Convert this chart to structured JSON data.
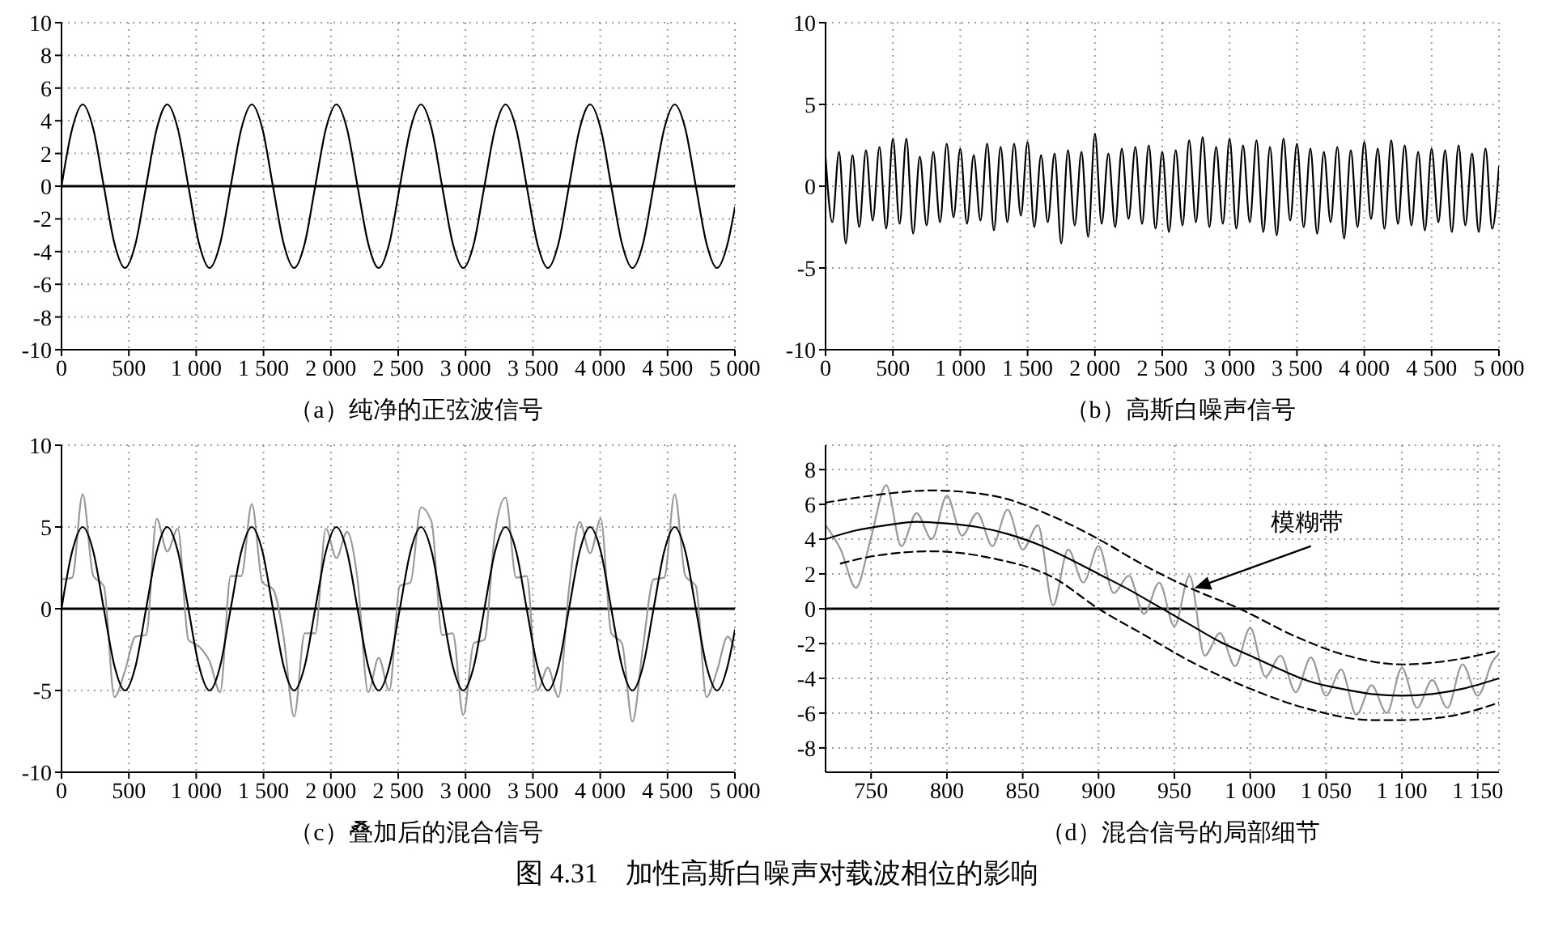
{
  "chart_data": [
    {
      "type": "line",
      "xlabel": "（a）纯净的正弦波信号",
      "xlim": [
        0,
        5000
      ],
      "ylim": [
        -10,
        10
      ],
      "xticks": [
        0,
        500,
        {
          "value": 1000,
          "label": "1 000"
        },
        {
          "value": 1500,
          "label": "1 500"
        },
        {
          "value": 2000,
          "label": "2 000"
        },
        {
          "value": 2500,
          "label": "2 500"
        },
        {
          "value": 3000,
          "label": "3 000"
        },
        {
          "value": 3500,
          "label": "3 500"
        },
        {
          "value": 4000,
          "label": "4 000"
        },
        {
          "value": 4500,
          "label": "4 500"
        },
        {
          "value": 5000,
          "label": "5 000"
        }
      ],
      "yticks": [
        -10,
        -8,
        -6,
        -4,
        -2,
        0,
        2,
        4,
        6,
        8,
        10
      ],
      "grid": true,
      "marker": "none",
      "line_style": "solid",
      "ref_lines": [
        {
          "axis": "y",
          "value": 0,
          "color": "#000000"
        }
      ],
      "series": [
        {
          "color": "#000000",
          "x": [
            0,
            79,
            157,
            236,
            314,
            393,
            471,
            550,
            628,
            707,
            785,
            864,
            942,
            1021,
            1099,
            1178,
            1256,
            1335,
            1413,
            1492,
            1570,
            1649,
            1727,
            1806,
            1884,
            1963,
            2041,
            2120,
            2198,
            2277,
            2355,
            2434,
            2512,
            2591,
            2669,
            2748,
            2826,
            2905,
            2983,
            3062,
            3140,
            3219,
            3297,
            3376,
            3454,
            3533,
            3611,
            3690,
            3768,
            3847,
            3925,
            4004,
            4082,
            4161,
            4239,
            4318,
            4396,
            4475,
            4553,
            4632,
            4710,
            4789,
            4867,
            4946,
            5000
          ],
          "values": [
            0,
            3.5,
            5,
            3.5,
            0,
            -3.5,
            -5,
            -3.5,
            0,
            3.5,
            5,
            3.5,
            0,
            -3.5,
            -5,
            -3.5,
            0,
            3.5,
            5,
            3.5,
            0,
            -3.5,
            -5,
            -3.5,
            0,
            3.5,
            5,
            3.5,
            0,
            -3.5,
            -5,
            -3.5,
            0,
            3.5,
            5,
            3.5,
            0,
            -3.5,
            -5,
            -3.5,
            0,
            3.5,
            5,
            3.5,
            0,
            -3.5,
            -5,
            -3.5,
            0,
            3.5,
            5,
            3.5,
            0,
            -3.5,
            -5,
            -3.5,
            0,
            3.5,
            5,
            3.5,
            0,
            -3.5,
            -5,
            -3.5,
            -1.3
          ]
        }
      ]
    },
    {
      "type": "line",
      "xlabel": "（b）高斯白噪声信号",
      "xlim": [
        0,
        5000
      ],
      "ylim": [
        -10,
        10
      ],
      "xticks": [
        0,
        500,
        {
          "value": 1000,
          "label": "1 000"
        },
        {
          "value": 1500,
          "label": "1 500"
        },
        {
          "value": 2000,
          "label": "2 000"
        },
        {
          "value": 2500,
          "label": "2 500"
        },
        {
          "value": 3000,
          "label": "3 000"
        },
        {
          "value": 3500,
          "label": "3 500"
        },
        {
          "value": 4000,
          "label": "4 000"
        },
        {
          "value": 4500,
          "label": "4 500"
        },
        {
          "value": 5000,
          "label": "5 000"
        }
      ],
      "yticks": [
        -10,
        -5,
        0,
        5,
        10
      ],
      "grid": true,
      "marker": "none",
      "line_style": "solid",
      "series": [
        {
          "color": "#000000",
          "x": [
            0,
            50,
            100,
            150,
            200,
            250,
            300,
            350,
            400,
            450,
            500,
            550,
            600,
            650,
            700,
            750,
            800,
            850,
            900,
            950,
            1000,
            1050,
            1100,
            1150,
            1200,
            1250,
            1300,
            1350,
            1400,
            1450,
            1500,
            1550,
            1600,
            1650,
            1700,
            1750,
            1800,
            1850,
            1900,
            1950,
            2000,
            2050,
            2100,
            2150,
            2200,
            2250,
            2300,
            2350,
            2400,
            2450,
            2500,
            2550,
            2600,
            2650,
            2700,
            2750,
            2800,
            2850,
            2900,
            2950,
            3000,
            3050,
            3100,
            3150,
            3200,
            3250,
            3300,
            3350,
            3400,
            3450,
            3500,
            3550,
            3600,
            3650,
            3700,
            3750,
            3800,
            3850,
            3900,
            3950,
            4000,
            4050,
            4100,
            4150,
            4200,
            4250,
            4300,
            4350,
            4400,
            4450,
            4500,
            4550,
            4600,
            4650,
            4700,
            4750,
            4800,
            4850,
            4900,
            4950,
            5000
          ],
          "values": [
            1.8,
            -2.2,
            2.1,
            -3.5,
            1.9,
            -2.5,
            2.2,
            -2.1,
            2.4,
            -2.6,
            2.9,
            -2.3,
            2.9,
            -2.9,
            1.8,
            -2.4,
            2.1,
            -2.2,
            2.6,
            -1.9,
            2.3,
            -2.3,
            1.9,
            -2.1,
            2.6,
            -2.7,
            2.4,
            -2.2,
            2.6,
            -1.8,
            2.7,
            -2.5,
            1.9,
            -2.2,
            2.0,
            -3.5,
            2.2,
            -2.4,
            2.1,
            -3.1,
            3.2,
            -2.3,
            2.0,
            -2.5,
            2.3,
            -2.0,
            2.4,
            -2.3,
            2.5,
            -2.6,
            2.1,
            -2.8,
            2.2,
            -2.4,
            2.8,
            -2.2,
            3.0,
            -2.5,
            2.4,
            -2.3,
            2.9,
            -2.6,
            2.5,
            -2.2,
            2.8,
            -2.8,
            2.4,
            -3.0,
            2.9,
            -2.1,
            2.6,
            -2.5,
            2.3,
            -2.9,
            2.1,
            -2.2,
            2.4,
            -3.2,
            2.2,
            -2.5,
            2.7,
            -2.0,
            2.3,
            -2.6,
            2.8,
            -2.3,
            2.5,
            -2.4,
            2.1,
            -2.7,
            2.3,
            -2.2,
            2.2,
            -2.8,
            2.5,
            -2.4,
            2.0,
            -2.8,
            2.3,
            -2.6,
            1.2
          ]
        }
      ]
    },
    {
      "type": "line",
      "xlabel": "（c）叠加后的混合信号",
      "xlim": [
        0,
        5000
      ],
      "ylim": [
        -10,
        10
      ],
      "xticks": [
        0,
        500,
        {
          "value": 1000,
          "label": "1 000"
        },
        {
          "value": 1500,
          "label": "1 500"
        },
        {
          "value": 2000,
          "label": "2 000"
        },
        {
          "value": 2500,
          "label": "2 500"
        },
        {
          "value": 3000,
          "label": "3 000"
        },
        {
          "value": 3500,
          "label": "3 500"
        },
        {
          "value": 4000,
          "label": "4 000"
        },
        {
          "value": 4500,
          "label": "4 500"
        },
        {
          "value": 5000,
          "label": "5 000"
        }
      ],
      "yticks": [
        -10,
        -5,
        0,
        5,
        10
      ],
      "grid": true,
      "marker": "none",
      "line_style": "solid",
      "ref_lines": [
        {
          "axis": "y",
          "value": 0,
          "color": "#000000"
        }
      ],
      "series": [
        {
          "color": "#999999",
          "x": [
            0,
            79,
            157,
            236,
            314,
            393,
            471,
            550,
            628,
            707,
            785,
            864,
            942,
            1021,
            1099,
            1178,
            1256,
            1335,
            1413,
            1492,
            1570,
            1649,
            1727,
            1806,
            1884,
            1963,
            2041,
            2120,
            2198,
            2277,
            2355,
            2434,
            2512,
            2591,
            2669,
            2748,
            2826,
            2905,
            2983,
            3062,
            3140,
            3219,
            3297,
            3376,
            3454,
            3533,
            3611,
            3690,
            3768,
            3847,
            3925,
            4004,
            4082,
            4161,
            4239,
            4318,
            4396,
            4475,
            4553,
            4632,
            4710,
            4789,
            4867,
            4946,
            5000
          ],
          "values": [
            1.8,
            1.9,
            7.0,
            2.0,
            1.4,
            -5.4,
            -3.8,
            -1.7,
            -1.6,
            5.5,
            3.5,
            4.9,
            -1.9,
            -2.3,
            -3.2,
            -5.1,
            2.0,
            2.0,
            6.4,
            1.6,
            1.2,
            -1.7,
            -6.6,
            -1.5,
            -1.5,
            4.9,
            3.1,
            4.7,
            1.8,
            -5.1,
            -3.0,
            -5.0,
            1.4,
            1.6,
            6.2,
            5.3,
            -1.6,
            -1.5,
            -6.5,
            -2.1,
            -1.9,
            4.7,
            6.8,
            1.9,
            2.0,
            -5.0,
            -3.6,
            -5.4,
            1.2,
            5.3,
            3.4,
            5.5,
            -1.5,
            -2.1,
            -6.9,
            -2.3,
            1.8,
            1.9,
            7.0,
            2.0,
            1.4,
            -5.4,
            -3.8,
            -1.7,
            -2.5
          ]
        },
        {
          "color": "#000000",
          "x": [
            0,
            79,
            157,
            236,
            314,
            393,
            471,
            550,
            628,
            707,
            785,
            864,
            942,
            1021,
            1099,
            1178,
            1256,
            1335,
            1413,
            1492,
            1570,
            1649,
            1727,
            1806,
            1884,
            1963,
            2041,
            2120,
            2198,
            2277,
            2355,
            2434,
            2512,
            2591,
            2669,
            2748,
            2826,
            2905,
            2983,
            3062,
            3140,
            3219,
            3297,
            3376,
            3454,
            3533,
            3611,
            3690,
            3768,
            3847,
            3925,
            4004,
            4082,
            4161,
            4239,
            4318,
            4396,
            4475,
            4553,
            4632,
            4710,
            4789,
            4867,
            4946,
            5000
          ],
          "values": [
            0,
            3.5,
            5,
            3.5,
            0,
            -3.5,
            -5,
            -3.5,
            0,
            3.5,
            5,
            3.5,
            0,
            -3.5,
            -5,
            -3.5,
            0,
            3.5,
            5,
            3.5,
            0,
            -3.5,
            -5,
            -3.5,
            0,
            3.5,
            5,
            3.5,
            0,
            -3.5,
            -5,
            -3.5,
            0,
            3.5,
            5,
            3.5,
            0,
            -3.5,
            -5,
            -3.5,
            0,
            3.5,
            5,
            3.5,
            0,
            -3.5,
            -5,
            -3.5,
            0,
            3.5,
            5,
            3.5,
            0,
            -3.5,
            -5,
            -3.5,
            0,
            3.5,
            5,
            3.5,
            0,
            -3.5,
            -5,
            -3.5,
            -1.3
          ]
        }
      ]
    },
    {
      "type": "line",
      "xlabel": "（d）混合信号的局部细节",
      "xlim": [
        720,
        1164
      ],
      "ylim": [
        -9.4,
        9.4
      ],
      "xticks": [
        750,
        800,
        850,
        900,
        950,
        {
          "value": 1000,
          "label": "1 000"
        },
        {
          "value": 1050,
          "label": "1 050"
        },
        {
          "value": 1100,
          "label": "1 100"
        },
        {
          "value": 1150,
          "label": "1 150"
        }
      ],
      "yticks": [
        -8,
        -6,
        -4,
        -2,
        0,
        2,
        4,
        6,
        8
      ],
      "grid": true,
      "marker": "none",
      "line_style": "solid",
      "ref_lines": [
        {
          "axis": "y",
          "value": 0,
          "color": "#000000"
        }
      ],
      "annotations": [
        {
          "text": "模糊带",
          "x": 960,
          "y": 1
        },
        "图 4.31　加性高斯白噪声对载波相位的影响"
      ],
      "series": [
        {
          "color": "#999999",
          "x": [
            720,
            730,
            740,
            750,
            760,
            770,
            780,
            790,
            800,
            810,
            820,
            830,
            840,
            850,
            860,
            870,
            880,
            890,
            900,
            910,
            920,
            930,
            940,
            950,
            960,
            970,
            980,
            990,
            1000,
            1010,
            1020,
            1030,
            1040,
            1050,
            1060,
            1070,
            1080,
            1090,
            1100,
            1110,
            1120,
            1130,
            1140,
            1150,
            1160,
            1164
          ],
          "values": [
            4.8,
            3.4,
            1.2,
            4.1,
            7.1,
            3.6,
            5.5,
            4.0,
            6.5,
            4.2,
            5.5,
            3.6,
            5.7,
            3.4,
            4.8,
            0.2,
            3.4,
            1.5,
            3.6,
            0.9,
            1.9,
            -0.3,
            1.5,
            -1.0,
            1.9,
            -2.7,
            -1.4,
            -3.3,
            -1.1,
            -3.9,
            -2.7,
            -4.8,
            -2.8,
            -5.0,
            -3.5,
            -6.1,
            -4.4,
            -6.0,
            -3.4,
            -5.7,
            -4.1,
            -5.7,
            -3.2,
            -5.0,
            -3.0,
            -2.6
          ]
        },
        {
          "color": "#000000",
          "x": [
            720,
            740,
            760,
            780,
            800,
            820,
            840,
            860,
            880,
            900,
            920,
            940,
            960,
            980,
            1000,
            1020,
            1040,
            1060,
            1080,
            1100,
            1120,
            1140,
            1164
          ],
          "values": [
            4.0,
            4.5,
            4.8,
            5.0,
            4.9,
            4.7,
            4.3,
            3.7,
            2.9,
            2.0,
            1.1,
            0.1,
            -0.9,
            -1.9,
            -2.7,
            -3.5,
            -4.2,
            -4.6,
            -4.9,
            -5.0,
            -4.9,
            -4.6,
            -4.0
          ]
        },
        {
          "color": "#000000",
          "line_style": "dashed",
          "x": [
            720,
            750,
            790,
            830,
            870,
            900,
            930,
            960,
            993,
            1030,
            1060,
            1100,
            1130,
            1164
          ],
          "values": [
            6.1,
            6.5,
            6.8,
            6.5,
            5.3,
            4.0,
            2.5,
            1.2,
            0,
            -1.6,
            -2.6,
            -3.2,
            -3.0,
            -2.4
          ]
        },
        {
          "color": "#000000",
          "line_style": "dashed",
          "x": [
            730,
            750,
            790,
            830,
            870,
            900,
            930,
            960,
            1000,
            1040,
            1080,
            1100,
            1130,
            1164
          ],
          "values": [
            2.6,
            3.0,
            3.3,
            2.9,
            1.8,
            0,
            -1.5,
            -3.0,
            -4.6,
            -5.8,
            -6.4,
            -6.4,
            -6.2,
            -5.4
          ]
        }
      ]
    }
  ]
}
